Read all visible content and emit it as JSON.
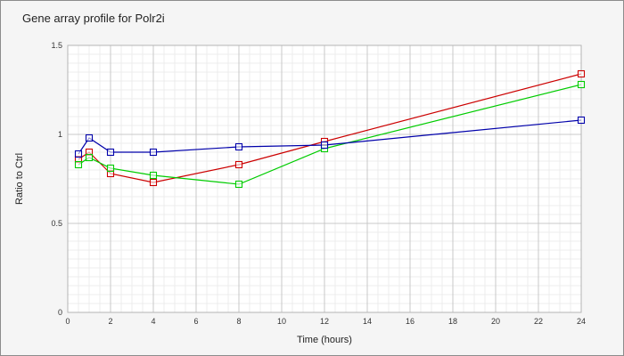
{
  "chart_data": {
    "type": "line",
    "title": "Gene array profile for Polr2i",
    "xlabel": "Time (hours)",
    "ylabel": "Ratio to Ctrl",
    "xlim": [
      0,
      24
    ],
    "ylim": [
      0,
      1.5
    ],
    "xticks": [
      "0",
      "2",
      "4",
      "6",
      "8",
      "10",
      "12",
      "14",
      "16",
      "18",
      "20",
      "22",
      "24"
    ],
    "yticks": [
      "0",
      "0.5",
      "1",
      "1.5"
    ],
    "grid": true,
    "legend": "none",
    "series": [
      {
        "color": "#cc0000",
        "x": [
          0.5,
          1,
          2,
          4,
          8,
          12,
          24
        ],
        "values": [
          0.86,
          0.9,
          0.78,
          0.73,
          0.83,
          0.96,
          1.34
        ]
      },
      {
        "color": "#00cc00",
        "x": [
          0.5,
          1,
          2,
          4,
          8,
          12,
          24
        ],
        "values": [
          0.83,
          0.87,
          0.81,
          0.77,
          0.72,
          0.92,
          1.28
        ]
      },
      {
        "color": "#0000aa",
        "x": [
          0.5,
          1,
          2,
          4,
          8,
          12,
          24
        ],
        "values": [
          0.89,
          0.98,
          0.9,
          0.9,
          0.93,
          0.94,
          1.08
        ]
      }
    ]
  }
}
